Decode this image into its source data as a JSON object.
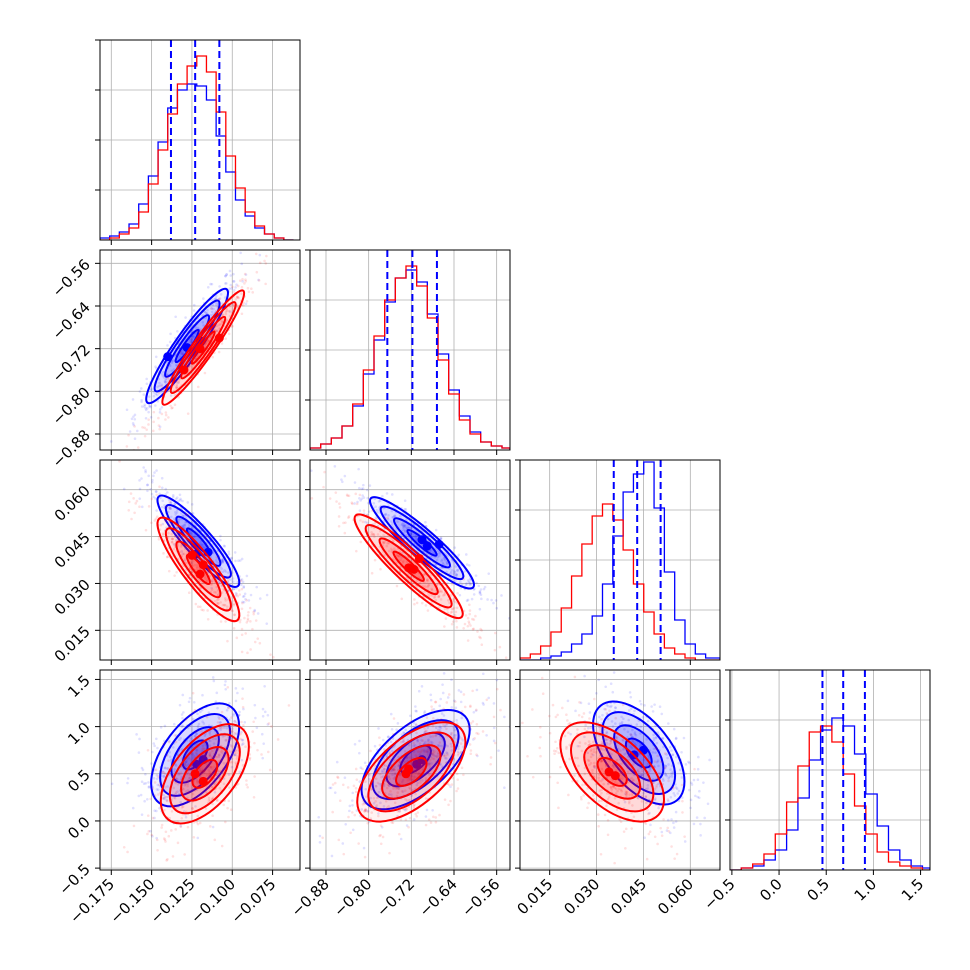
{
  "chart_data": {
    "type": "corner",
    "colors": {
      "series_a": "#0000ff",
      "series_b": "#ff0000",
      "quantile_lines": "#0000ff"
    },
    "grid": true,
    "parameters": [
      {
        "range": [
          -0.182,
          -0.058
        ],
        "ticks": [
          -0.175,
          -0.15,
          -0.125,
          -0.1,
          -0.075
        ],
        "tick_labels": [
          "−0.175",
          "−0.150",
          "−0.125",
          "−0.100",
          "−0.075"
        ],
        "quantiles_16_50_84": [
          -0.138,
          -0.123,
          -0.108
        ]
      },
      {
        "range": [
          -0.91,
          -0.535
        ],
        "ticks": [
          -0.88,
          -0.8,
          -0.72,
          -0.64,
          -0.56
        ],
        "tick_labels": [
          "−0.88",
          "−0.80",
          "−0.72",
          "−0.64",
          "−0.56"
        ],
        "quantiles_16_50_84": [
          -0.765,
          -0.718,
          -0.672
        ]
      },
      {
        "range": [
          0.0055,
          0.0695
        ],
        "ticks": [
          0.015,
          0.03,
          0.045,
          0.06
        ],
        "tick_labels": [
          "0.015",
          "0.030",
          "0.045",
          "0.060"
        ],
        "quantiles_16_50_84": [
          0.0355,
          0.043,
          0.0505
        ]
      },
      {
        "range": [
          -0.52,
          1.6
        ],
        "ticks": [
          -0.5,
          0.0,
          0.5,
          1.0,
          1.5
        ],
        "tick_labels": [
          "−0.5",
          "0.0",
          "0.5",
          "1.0",
          "1.5"
        ],
        "quantiles_16_50_84": [
          0.46,
          0.68,
          0.91
        ]
      }
    ],
    "histograms": [
      {
        "bins": [
          -0.182,
          -0.176,
          -0.17,
          -0.164,
          -0.158,
          -0.152,
          -0.146,
          -0.14,
          -0.134,
          -0.128,
          -0.122,
          -0.116,
          -0.11,
          -0.104,
          -0.098,
          -0.092,
          -0.086,
          -0.08,
          -0.074,
          -0.068,
          -0.062
        ],
        "blue": [
          0.01,
          0.02,
          0.04,
          0.08,
          0.18,
          0.32,
          0.49,
          0.66,
          0.75,
          0.78,
          0.77,
          0.7,
          0.52,
          0.34,
          0.2,
          0.12,
          0.06,
          0.03,
          0.01,
          0.0
        ],
        "red": [
          0.0,
          0.01,
          0.03,
          0.06,
          0.14,
          0.28,
          0.45,
          0.63,
          0.78,
          0.87,
          0.92,
          0.84,
          0.64,
          0.42,
          0.26,
          0.14,
          0.07,
          0.03,
          0.01,
          0.0
        ]
      },
      {
        "bins": [
          -0.91,
          -0.89,
          -0.87,
          -0.85,
          -0.83,
          -0.81,
          -0.79,
          -0.77,
          -0.75,
          -0.73,
          -0.71,
          -0.69,
          -0.67,
          -0.65,
          -0.63,
          -0.61,
          -0.59,
          -0.57,
          -0.55,
          -0.535
        ],
        "blue": [
          0.01,
          0.03,
          0.06,
          0.12,
          0.22,
          0.38,
          0.55,
          0.74,
          0.86,
          0.9,
          0.84,
          0.68,
          0.48,
          0.3,
          0.17,
          0.09,
          0.04,
          0.02,
          0.01
        ],
        "red": [
          0.01,
          0.03,
          0.06,
          0.12,
          0.23,
          0.4,
          0.57,
          0.75,
          0.86,
          0.92,
          0.82,
          0.66,
          0.45,
          0.28,
          0.15,
          0.08,
          0.04,
          0.02,
          0.01
        ]
      },
      {
        "bins": [
          0.0055,
          0.0088,
          0.0121,
          0.0154,
          0.0187,
          0.022,
          0.0253,
          0.0286,
          0.0319,
          0.0352,
          0.0385,
          0.0418,
          0.0451,
          0.0484,
          0.0517,
          0.055,
          0.0583,
          0.0616,
          0.0649,
          0.0695
        ],
        "blue": [
          0.0,
          0.0,
          0.01,
          0.02,
          0.04,
          0.08,
          0.13,
          0.22,
          0.38,
          0.62,
          0.84,
          0.93,
          0.99,
          0.76,
          0.44,
          0.2,
          0.08,
          0.03,
          0.01
        ],
        "red": [
          0.01,
          0.03,
          0.07,
          0.14,
          0.26,
          0.42,
          0.58,
          0.72,
          0.78,
          0.7,
          0.55,
          0.38,
          0.24,
          0.13,
          0.06,
          0.03,
          0.01,
          0.0,
          0.0
        ]
      },
      {
        "bins": [
          -0.52,
          -0.4,
          -0.28,
          -0.16,
          -0.04,
          0.08,
          0.2,
          0.32,
          0.44,
          0.56,
          0.68,
          0.8,
          0.92,
          1.04,
          1.16,
          1.28,
          1.4,
          1.52,
          1.6
        ],
        "blue": [
          0.0,
          0.01,
          0.02,
          0.05,
          0.1,
          0.2,
          0.36,
          0.55,
          0.7,
          0.76,
          0.72,
          0.58,
          0.38,
          0.22,
          0.1,
          0.05,
          0.02,
          0.01
        ],
        "red": [
          0.0,
          0.01,
          0.03,
          0.08,
          0.18,
          0.34,
          0.52,
          0.69,
          0.72,
          0.64,
          0.48,
          0.32,
          0.18,
          0.09,
          0.04,
          0.02,
          0.01,
          0.0
        ]
      }
    ],
    "joint": [
      {
        "x_param": 0,
        "y_param": 1,
        "blue": {
          "mean": [
            -0.128,
            -0.715
          ],
          "sd": [
            0.013,
            0.055
          ],
          "corr": 0.93,
          "peaks": [
            [
              -0.14,
              -0.735
            ],
            [
              -0.128,
              -0.718
            ],
            [
              -0.12,
              -0.705
            ]
          ]
        },
        "red": {
          "mean": [
            -0.118,
            -0.718
          ],
          "sd": [
            0.013,
            0.055
          ],
          "corr": 0.95,
          "peaks": [
            [
              -0.13,
              -0.76
            ],
            [
              -0.12,
              -0.72
            ],
            [
              -0.108,
              -0.7
            ]
          ]
        }
      },
      {
        "x_param": 0,
        "y_param": 2,
        "blue": {
          "mean": [
            -0.121,
            0.0435
          ],
          "sd": [
            0.013,
            0.0075
          ],
          "corr": -0.9,
          "peaks": [
            [
              -0.122,
              0.0395
            ],
            [
              -0.115,
              0.04
            ]
          ]
        },
        "red": {
          "mean": [
            -0.121,
            0.0345
          ],
          "sd": [
            0.013,
            0.0085
          ],
          "corr": -0.88,
          "peaks": [
            [
              -0.125,
              0.039
            ],
            [
              -0.12,
              0.033
            ],
            [
              -0.118,
              0.036
            ]
          ]
        }
      },
      {
        "x_param": 1,
        "y_param": 2,
        "blue": {
          "mean": [
            -0.7,
            0.043
          ],
          "sd": [
            0.05,
            0.0075
          ],
          "corr": -0.92,
          "peaks": [
            [
              -0.7,
              0.044
            ],
            [
              -0.69,
              0.042
            ],
            [
              -0.668,
              0.0425
            ]
          ]
        },
        "red": {
          "mean": [
            -0.725,
            0.0355
          ],
          "sd": [
            0.052,
            0.0085
          ],
          "corr": -0.92,
          "peaks": [
            [
              -0.725,
              0.035
            ],
            [
              -0.715,
              0.0345
            ],
            [
              -0.705,
              0.038
            ]
          ]
        }
      },
      {
        "x_param": 0,
        "y_param": 3,
        "blue": {
          "mean": [
            -0.123,
            0.7
          ],
          "sd": [
            0.014,
            0.28
          ],
          "corr": 0.55,
          "peaks": [
            [
              -0.118,
              0.65
            ],
            [
              -0.122,
              0.6
            ]
          ]
        },
        "red": {
          "mean": [
            -0.117,
            0.5
          ],
          "sd": [
            0.014,
            0.27
          ],
          "corr": 0.55,
          "peaks": [
            [
              -0.123,
              0.5
            ],
            [
              -0.118,
              0.42
            ]
          ]
        }
      },
      {
        "x_param": 1,
        "y_param": 3,
        "blue": {
          "mean": [
            -0.712,
            0.65
          ],
          "sd": [
            0.052,
            0.27
          ],
          "corr": 0.6,
          "peaks": [
            [
              -0.7,
              0.65
            ],
            [
              -0.71,
              0.6
            ]
          ]
        },
        "red": {
          "mean": [
            -0.72,
            0.52
          ],
          "sd": [
            0.052,
            0.27
          ],
          "corr": 0.6,
          "peaks": [
            [
              -0.725,
              0.55
            ],
            [
              -0.73,
              0.5
            ]
          ]
        }
      },
      {
        "x_param": 2,
        "y_param": 3,
        "blue": {
          "mean": [
            0.0435,
            0.72
          ],
          "sd": [
            0.0075,
            0.28
          ],
          "corr": -0.55,
          "peaks": [
            [
              0.045,
              0.75
            ],
            [
              0.042,
              0.7
            ]
          ]
        },
        "red": {
          "mean": [
            0.035,
            0.52
          ],
          "sd": [
            0.0085,
            0.27
          ],
          "corr": -0.55,
          "peaks": [
            [
              0.034,
              0.52
            ],
            [
              0.036,
              0.48
            ]
          ]
        }
      }
    ]
  }
}
